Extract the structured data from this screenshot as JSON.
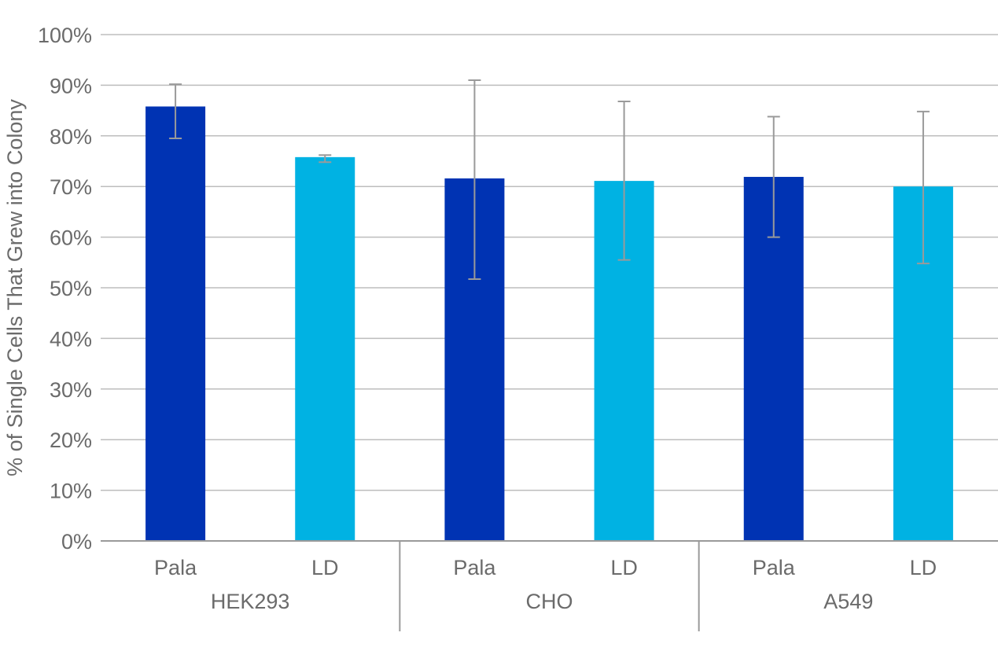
{
  "chart_data": {
    "type": "bar",
    "title": "",
    "ylabel": "% of Single Cells That Grew into Colony",
    "xlabel": "",
    "ylim": [
      0,
      100
    ],
    "yticks": [
      0,
      10,
      20,
      30,
      40,
      50,
      60,
      70,
      80,
      90,
      100
    ],
    "ytick_labels": [
      "0%",
      "10%",
      "20%",
      "30%",
      "40%",
      "50%",
      "60%",
      "70%",
      "80%",
      "90%",
      "100%"
    ],
    "grid": true,
    "legend": "none",
    "groups": [
      {
        "name": "HEK293",
        "bars": [
          {
            "label": "Pala",
            "value": 85.8,
            "err_low": 79.5,
            "err_high": 90.2,
            "color": "#0033b3"
          },
          {
            "label": "LD",
            "value": 75.8,
            "err_low": 74.8,
            "err_high": 76.2,
            "color": "#00b2e3"
          }
        ]
      },
      {
        "name": "CHO",
        "bars": [
          {
            "label": "Pala",
            "value": 71.6,
            "err_low": 51.7,
            "err_high": 91.0,
            "color": "#0033b3"
          },
          {
            "label": "LD",
            "value": 71.1,
            "err_low": 55.5,
            "err_high": 86.8,
            "color": "#00b2e3"
          }
        ]
      },
      {
        "name": "A549",
        "bars": [
          {
            "label": "Pala",
            "value": 71.9,
            "err_low": 60.0,
            "err_high": 83.8,
            "color": "#0033b3"
          },
          {
            "label": "LD",
            "value": 70.0,
            "err_low": 54.8,
            "err_high": 84.8,
            "color": "#00b2e3"
          }
        ]
      }
    ]
  }
}
